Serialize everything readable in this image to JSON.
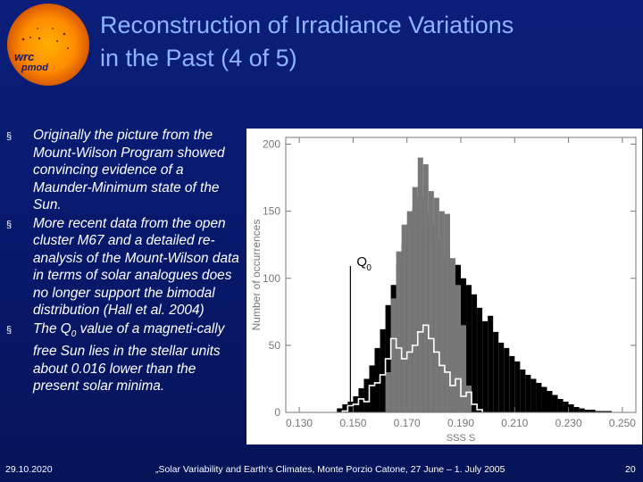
{
  "header": {
    "title_line1": "Reconstruction of Irradiance Variations",
    "title_line2": "in the Past (4 of 5)",
    "logo_text": "pmod wrc"
  },
  "bullets": [
    {
      "text": "Originally the picture from the Mount-Wilson Program showed convincing evidence of a Maunder-Minimum state of the Sun."
    },
    {
      "text": "More recent data from the open cluster M67 and a detailed re-analysis of the Mount-Wilson data in terms of solar analogues does no longer support  the bimodal distribution (Hall et al. 2004)"
    },
    {
      "pre": "The Q",
      "sub": "0",
      "post": " value of a magneti-cally free Sun lies in the stellar units about 0.016 lower than the present solar minima."
    }
  ],
  "bullet_marker": "§",
  "chart_data": {
    "type": "bar",
    "xlabel": "SSS  S",
    "ylabel": "Number of occurrences",
    "xlim": [
      0.125,
      0.255
    ],
    "ylim": [
      0,
      205
    ],
    "xticks": [
      "0.130",
      "0.150",
      "0.170",
      "0.190",
      "0.210",
      "0.230",
      "0.250"
    ],
    "yticks": [
      "0",
      "50",
      "100",
      "150",
      "200"
    ],
    "bin_width": 0.002,
    "annotation": {
      "text": "Q",
      "sub": "0",
      "x": 0.149
    },
    "series": [
      {
        "fill": "#000000",
        "x": [
          0.145,
          0.147,
          0.149,
          0.151,
          0.153,
          0.155,
          0.157,
          0.159,
          0.161,
          0.163,
          0.165,
          0.167,
          0.169,
          0.171,
          0.173,
          0.175,
          0.177,
          0.179,
          0.181,
          0.183,
          0.185,
          0.187,
          0.189,
          0.191,
          0.193,
          0.195,
          0.197,
          0.199,
          0.201,
          0.203,
          0.205,
          0.207,
          0.209,
          0.211,
          0.213,
          0.215,
          0.217,
          0.219,
          0.221,
          0.223,
          0.225,
          0.227,
          0.229,
          0.231,
          0.233,
          0.235,
          0.237,
          0.239,
          0.241,
          0.243,
          0.245
        ],
        "values": [
          3,
          6,
          8,
          12,
          18,
          25,
          35,
          48,
          62,
          80,
          95,
          110,
          125,
          140,
          152,
          160,
          150,
          140,
          128,
          115,
          120,
          105,
          110,
          100,
          95,
          88,
          78,
          68,
          72,
          60,
          52,
          48,
          42,
          38,
          32,
          28,
          25,
          22,
          19,
          16,
          13,
          10,
          8,
          6,
          4,
          3,
          2,
          2,
          1,
          1,
          1
        ]
      },
      {
        "fill": "#777777",
        "x": [
          0.163,
          0.165,
          0.167,
          0.169,
          0.171,
          0.173,
          0.175,
          0.177,
          0.179,
          0.181,
          0.183,
          0.185,
          0.187,
          0.189,
          0.191,
          0.193
        ],
        "values": [
          30,
          85,
          120,
          140,
          150,
          168,
          190,
          185,
          165,
          160,
          150,
          148,
          115,
          95,
          65,
          20
        ]
      },
      {
        "fill": "none",
        "stroke": "#ffffff",
        "x": [
          0.147,
          0.149,
          0.151,
          0.153,
          0.155,
          0.157,
          0.159,
          0.161,
          0.163,
          0.165,
          0.167,
          0.169,
          0.171,
          0.173,
          0.175,
          0.177,
          0.179,
          0.181,
          0.183,
          0.185,
          0.187,
          0.189,
          0.191,
          0.193,
          0.195,
          0.197
        ],
        "values": [
          1,
          5,
          6,
          10,
          8,
          20,
          22,
          28,
          40,
          55,
          48,
          40,
          45,
          50,
          60,
          65,
          55,
          45,
          35,
          30,
          20,
          25,
          12,
          15,
          6,
          2
        ]
      }
    ]
  },
  "footer": {
    "date": "29.10.2020",
    "conference": "„Solar Variability and Earth‘s Climates, Monte Porzio Catone, 27 June – 1. July 2005",
    "page": "20"
  }
}
